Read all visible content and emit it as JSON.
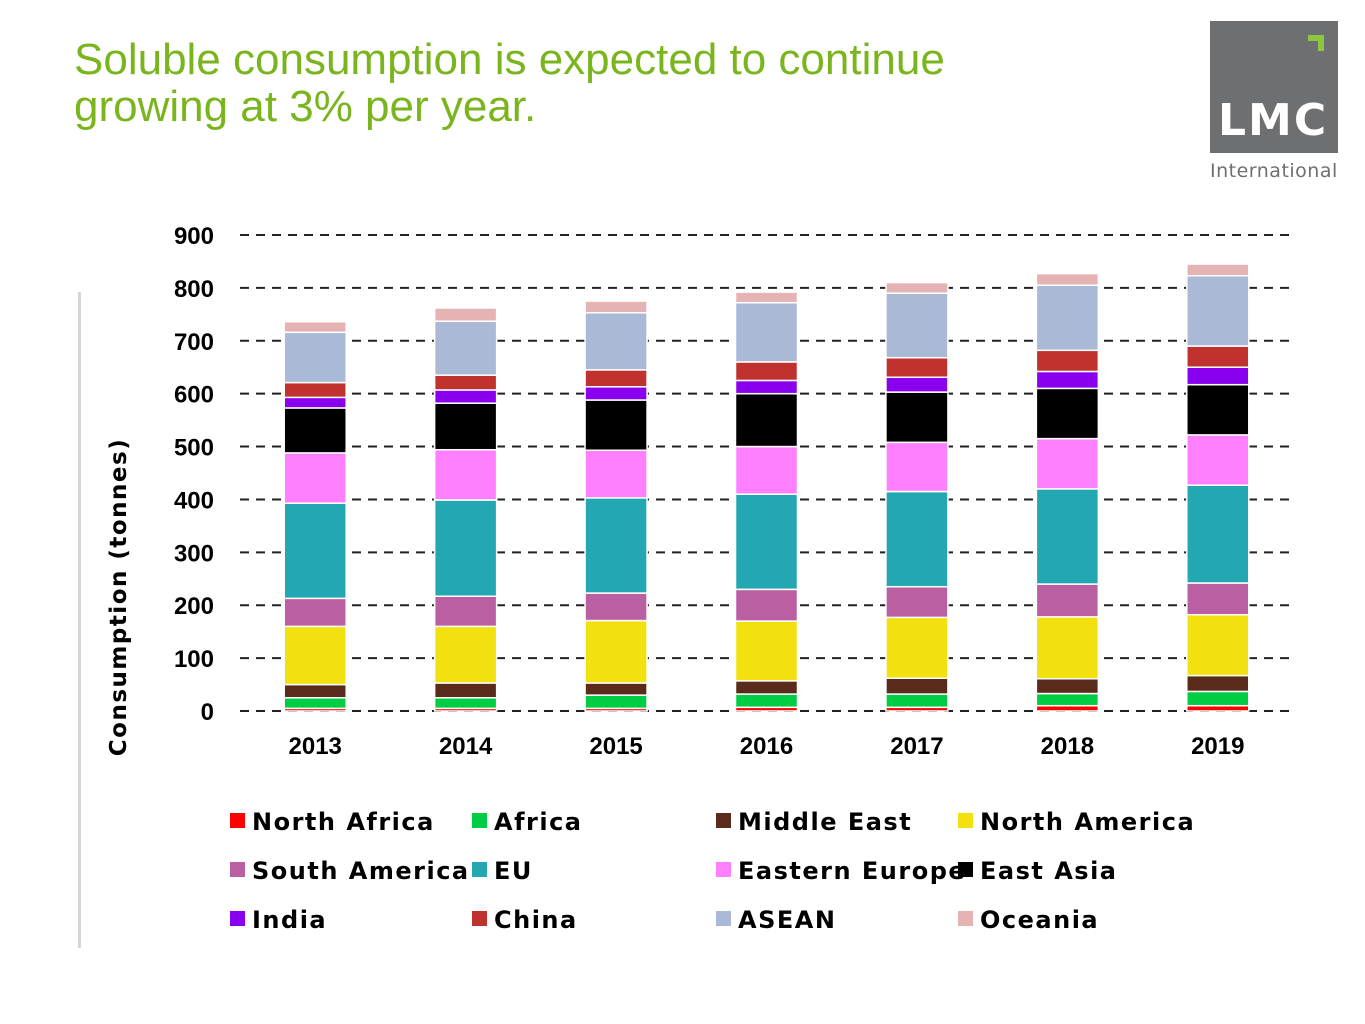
{
  "slide": {
    "title_line1": "Soluble consumption is expected to continue",
    "title_line2": "growing at 3% per year."
  },
  "logo": {
    "text": "LMC",
    "subtitle": "International"
  },
  "colors": {
    "title": "#7ab51d",
    "logo_box": "#6d6f71",
    "logo_accent": "#8dc63f"
  },
  "chart_data": {
    "type": "bar",
    "stacked": true,
    "title": "",
    "xlabel": "",
    "ylabel": "Consumption  (tonnes)",
    "ylim": [
      0,
      900
    ],
    "yticks": [
      0,
      100,
      200,
      300,
      400,
      500,
      600,
      700,
      800,
      900
    ],
    "grid": "horizontal dashed",
    "legend_position": "bottom",
    "categories": [
      "2013",
      "2014",
      "2015",
      "2016",
      "2017",
      "2018",
      "2019"
    ],
    "series": [
      {
        "name": "North Africa",
        "color": "#ff0000",
        "values": [
          5,
          5,
          5,
          7,
          7,
          10,
          10
        ]
      },
      {
        "name": "Africa",
        "color": "#00cc44",
        "values": [
          20,
          20,
          25,
          25,
          25,
          23,
          27
        ]
      },
      {
        "name": "Middle East",
        "color": "#5a2a1a",
        "values": [
          25,
          28,
          23,
          25,
          30,
          28,
          30
        ]
      },
      {
        "name": "North America",
        "color": "#f2e00f",
        "values": [
          110,
          107,
          118,
          113,
          115,
          117,
          115
        ]
      },
      {
        "name": "South America",
        "color": "#bb5fa3",
        "values": [
          53,
          57,
          52,
          60,
          58,
          62,
          60
        ]
      },
      {
        "name": "EU",
        "color": "#23a7b2",
        "values": [
          180,
          182,
          180,
          180,
          180,
          180,
          185
        ]
      },
      {
        "name": "Eastern Europe",
        "color": "#ff80ff",
        "values": [
          95,
          95,
          90,
          90,
          93,
          95,
          95
        ]
      },
      {
        "name": "East Asia",
        "color": "#000000",
        "values": [
          85,
          88,
          95,
          100,
          95,
          95,
          95
        ]
      },
      {
        "name": "India",
        "color": "#8800ee",
        "values": [
          20,
          25,
          25,
          25,
          28,
          32,
          33
        ]
      },
      {
        "name": "China",
        "color": "#c0322e",
        "values": [
          28,
          28,
          32,
          35,
          37,
          40,
          40
        ]
      },
      {
        "name": "ASEAN",
        "color": "#a9b9d6",
        "values": [
          95,
          102,
          108,
          112,
          122,
          123,
          133
        ]
      },
      {
        "name": "Oceania",
        "color": "#e6b3b5",
        "values": [
          20,
          25,
          22,
          20,
          20,
          22,
          22
        ]
      }
    ]
  }
}
